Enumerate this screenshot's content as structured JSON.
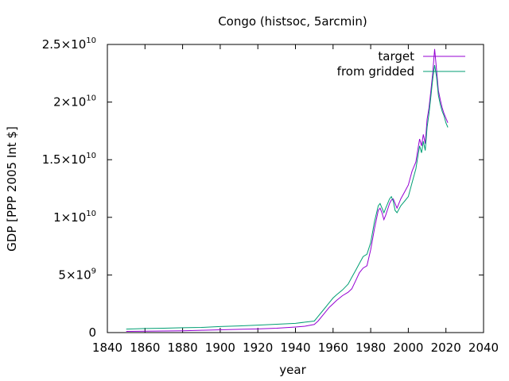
{
  "chart_data": {
    "type": "line",
    "title": "Congo (histsoc, 5arcmin)",
    "xlabel": "year",
    "ylabel": "GDP [PPP 2005 Int $]",
    "xlim": [
      1840,
      2040
    ],
    "ylim": [
      0,
      25000000000
    ],
    "grid": false,
    "legend_position": "top-right",
    "x_ticks": [
      1840,
      1860,
      1880,
      1900,
      1920,
      1940,
      1960,
      1980,
      2000,
      2020,
      2040
    ],
    "x_tick_labels": [
      "1840",
      "1860",
      "1880",
      "1900",
      "1920",
      "1940",
      "1960",
      "1980",
      "2000",
      "2020",
      "2040"
    ],
    "y_ticks": [
      {
        "value": 0,
        "mantissa": "0",
        "exponent": ""
      },
      {
        "value": 5000000000,
        "mantissa": "5×10",
        "exponent": "9"
      },
      {
        "value": 10000000000,
        "mantissa": "1×10",
        "exponent": "10"
      },
      {
        "value": 15000000000,
        "mantissa": "1.5×10",
        "exponent": "10"
      },
      {
        "value": 20000000000,
        "mantissa": "2×10",
        "exponent": "10"
      },
      {
        "value": 25000000000,
        "mantissa": "2.5×10",
        "exponent": "10"
      }
    ],
    "series": [
      {
        "name": "target",
        "color": "#9400d3",
        "points": [
          [
            1850,
            0.1
          ],
          [
            1860,
            0.12
          ],
          [
            1870,
            0.14
          ],
          [
            1880,
            0.16
          ],
          [
            1890,
            0.2
          ],
          [
            1900,
            0.24
          ],
          [
            1910,
            0.28
          ],
          [
            1920,
            0.32
          ],
          [
            1930,
            0.38
          ],
          [
            1940,
            0.48
          ],
          [
            1945,
            0.55
          ],
          [
            1950,
            0.7
          ],
          [
            1952,
            1.0
          ],
          [
            1955,
            1.6
          ],
          [
            1958,
            2.2
          ],
          [
            1960,
            2.5
          ],
          [
            1962,
            2.8
          ],
          [
            1965,
            3.2
          ],
          [
            1968,
            3.5
          ],
          [
            1970,
            3.8
          ],
          [
            1972,
            4.5
          ],
          [
            1974,
            5.2
          ],
          [
            1976,
            5.6
          ],
          [
            1978,
            5.8
          ],
          [
            1980,
            7.2
          ],
          [
            1982,
            9.0
          ],
          [
            1984,
            10.6
          ],
          [
            1985,
            10.8
          ],
          [
            1986,
            10.4
          ],
          [
            1987,
            9.8
          ],
          [
            1988,
            10.2
          ],
          [
            1990,
            11.2
          ],
          [
            1991,
            11.5
          ],
          [
            1992,
            11.6
          ],
          [
            1993,
            11.2
          ],
          [
            1994,
            10.8
          ],
          [
            1996,
            11.6
          ],
          [
            1998,
            12.2
          ],
          [
            2000,
            12.8
          ],
          [
            2002,
            14.0
          ],
          [
            2004,
            14.8
          ],
          [
            2005,
            15.8
          ],
          [
            2006,
            16.8
          ],
          [
            2007,
            16.2
          ],
          [
            2008,
            17.2
          ],
          [
            2009,
            16.4
          ],
          [
            2010,
            18.5
          ],
          [
            2011,
            19.5
          ],
          [
            2012,
            21.0
          ],
          [
            2013,
            22.5
          ],
          [
            2014,
            24.6
          ],
          [
            2015,
            22.8
          ],
          [
            2016,
            21.0
          ],
          [
            2017,
            20.2
          ],
          [
            2018,
            19.5
          ],
          [
            2019,
            19.0
          ],
          [
            2020,
            18.6
          ],
          [
            2021,
            18.2
          ]
        ]
      },
      {
        "name": "from gridded",
        "color": "#009e73",
        "points": [
          [
            1850,
            0.3
          ],
          [
            1860,
            0.35
          ],
          [
            1870,
            0.38
          ],
          [
            1880,
            0.42
          ],
          [
            1890,
            0.45
          ],
          [
            1900,
            0.52
          ],
          [
            1910,
            0.58
          ],
          [
            1920,
            0.65
          ],
          [
            1930,
            0.72
          ],
          [
            1940,
            0.8
          ],
          [
            1945,
            0.9
          ],
          [
            1950,
            1.0
          ],
          [
            1952,
            1.4
          ],
          [
            1955,
            2.0
          ],
          [
            1958,
            2.6
          ],
          [
            1960,
            3.0
          ],
          [
            1962,
            3.3
          ],
          [
            1965,
            3.7
          ],
          [
            1968,
            4.2
          ],
          [
            1970,
            4.8
          ],
          [
            1972,
            5.4
          ],
          [
            1974,
            6.0
          ],
          [
            1976,
            6.6
          ],
          [
            1978,
            6.8
          ],
          [
            1980,
            7.8
          ],
          [
            1982,
            9.6
          ],
          [
            1984,
            11.0
          ],
          [
            1985,
            11.2
          ],
          [
            1986,
            10.8
          ],
          [
            1987,
            10.4
          ],
          [
            1988,
            10.8
          ],
          [
            1990,
            11.6
          ],
          [
            1991,
            11.8
          ],
          [
            1992,
            11.4
          ],
          [
            1993,
            10.6
          ],
          [
            1994,
            10.4
          ],
          [
            1996,
            11.0
          ],
          [
            1998,
            11.4
          ],
          [
            2000,
            11.8
          ],
          [
            2002,
            13.0
          ],
          [
            2004,
            14.2
          ],
          [
            2005,
            15.2
          ],
          [
            2006,
            16.2
          ],
          [
            2007,
            15.6
          ],
          [
            2008,
            16.6
          ],
          [
            2009,
            15.8
          ],
          [
            2010,
            17.8
          ],
          [
            2011,
            19.0
          ],
          [
            2012,
            20.5
          ],
          [
            2013,
            22.0
          ],
          [
            2014,
            23.2
          ],
          [
            2015,
            22.2
          ],
          [
            2016,
            20.6
          ],
          [
            2017,
            19.8
          ],
          [
            2018,
            19.2
          ],
          [
            2019,
            18.8
          ],
          [
            2020,
            18.2
          ],
          [
            2021,
            17.8
          ]
        ]
      }
    ],
    "y_unit_of_points": 1000000000
  }
}
